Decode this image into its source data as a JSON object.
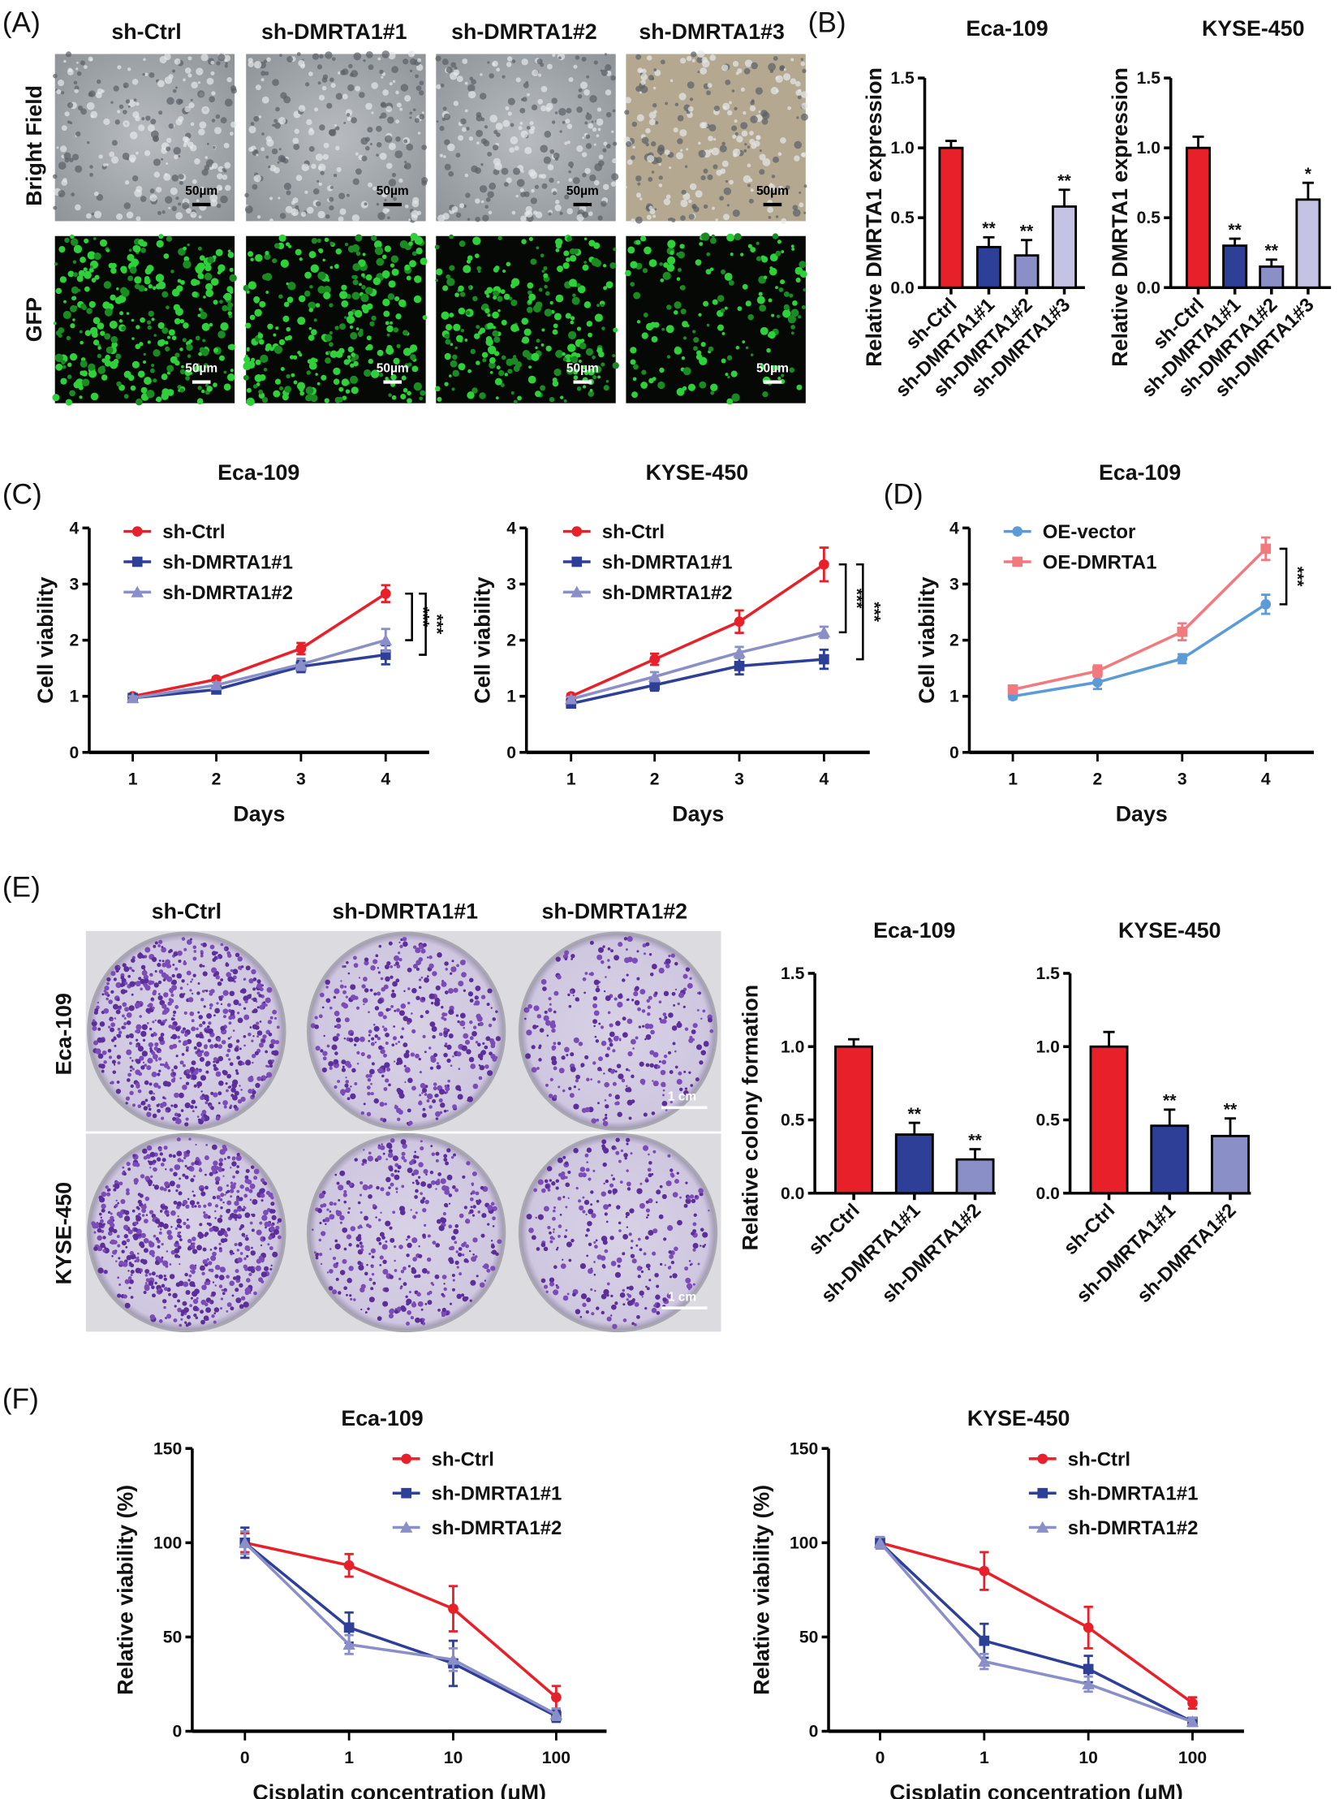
{
  "panel_labels": {
    "A": "(A)",
    "B": "(B)",
    "C": "(C)",
    "D": "(D)",
    "E": "(E)",
    "F": "(F)"
  },
  "panel_a": {
    "columns": [
      "sh-Ctrl",
      "sh-DMRTA1#1",
      "sh-DMRTA1#2",
      "sh-DMRTA1#3"
    ],
    "rows": [
      "Bright Field",
      "GFP"
    ],
    "scale_bar": "50µm"
  },
  "panel_e_images": {
    "columns": [
      "sh-Ctrl",
      "sh-DMRTA1#1",
      "sh-DMRTA1#2"
    ],
    "rows": [
      "Eca-109",
      "KYSE-450"
    ],
    "scale_bar": "1 cm"
  },
  "colors": {
    "ctrl": "#e8202a",
    "sh1": "#2e3f98",
    "sh2": "#8a8fc8",
    "sh3": "#c4c3e3",
    "oe_vector": "#5a9bd8",
    "oe_dmrta1": "#f07a7e"
  },
  "chart_data": [
    {
      "id": "B1",
      "type": "bar",
      "title": "Eca-109",
      "ylabel": "Relative DMRTA1 expression",
      "ylim": [
        0,
        1.5
      ],
      "ticks": [
        "0.0",
        "0.5",
        "1.0",
        "1.5"
      ],
      "categories": [
        "sh-Ctrl",
        "sh-DMRTA1#1",
        "sh-DMRTA1#2",
        "sh-DMRTA1#3"
      ],
      "values": [
        1.0,
        0.29,
        0.23,
        0.58
      ],
      "errors": [
        0.05,
        0.07,
        0.11,
        0.12
      ],
      "sig": [
        "",
        "**",
        "**",
        "**"
      ]
    },
    {
      "id": "B2",
      "type": "bar",
      "title": "KYSE-450",
      "ylabel": "Relative DMRTA1 expression",
      "ylim": [
        0,
        1.5
      ],
      "ticks": [
        "0.0",
        "0.5",
        "1.0",
        "1.5"
      ],
      "categories": [
        "sh-Ctrl",
        "sh-DMRTA1#1",
        "sh-DMRTA1#2",
        "sh-DMRTA1#3"
      ],
      "values": [
        1.0,
        0.3,
        0.15,
        0.63
      ],
      "errors": [
        0.08,
        0.05,
        0.05,
        0.12
      ],
      "sig": [
        "",
        "**",
        "**",
        "*"
      ]
    },
    {
      "id": "C1",
      "type": "line",
      "title": "Eca-109",
      "xlabel": "Days",
      "ylabel": "Cell viability",
      "ylim": [
        0,
        4
      ],
      "ticks": [
        "0",
        "1",
        "2",
        "3",
        "4"
      ],
      "x": [
        "1",
        "2",
        "3",
        "4"
      ],
      "series": [
        {
          "name": "sh-Ctrl",
          "values": [
            1.0,
            1.3,
            1.85,
            2.83
          ],
          "errors": [
            0.04,
            0.04,
            0.1,
            0.15
          ]
        },
        {
          "name": "sh-DMRTA1#1",
          "values": [
            0.97,
            1.12,
            1.53,
            1.74
          ],
          "errors": [
            0.04,
            0.05,
            0.1,
            0.17
          ]
        },
        {
          "name": "sh-DMRTA1#2",
          "values": [
            0.97,
            1.2,
            1.57,
            2.0
          ],
          "errors": [
            0.03,
            0.05,
            0.1,
            0.2
          ]
        }
      ],
      "significance": [
        "***",
        "***"
      ]
    },
    {
      "id": "C2",
      "type": "line",
      "title": "KYSE-450",
      "xlabel": "Days",
      "ylabel": "Cell viability",
      "ylim": [
        0,
        4
      ],
      "ticks": [
        "0",
        "1",
        "2",
        "3",
        "4"
      ],
      "x": [
        "1",
        "2",
        "3",
        "4"
      ],
      "series": [
        {
          "name": "sh-Ctrl",
          "values": [
            1.0,
            1.66,
            2.33,
            3.35
          ],
          "errors": [
            0.04,
            0.1,
            0.2,
            0.3
          ]
        },
        {
          "name": "sh-DMRTA1#1",
          "values": [
            0.87,
            1.2,
            1.54,
            1.66
          ],
          "errors": [
            0.05,
            0.1,
            0.15,
            0.17
          ]
        },
        {
          "name": "sh-DMRTA1#2",
          "values": [
            0.95,
            1.35,
            1.78,
            2.14
          ],
          "errors": [
            0.04,
            0.08,
            0.1,
            0.1
          ]
        }
      ],
      "significance": [
        "***",
        "***"
      ]
    },
    {
      "id": "D",
      "type": "line",
      "title": "Eca-109",
      "xlabel": "Days",
      "ylabel": "Cell viability",
      "ylim": [
        0,
        4
      ],
      "ticks": [
        "0",
        "1",
        "2",
        "3",
        "4"
      ],
      "x": [
        "1",
        "2",
        "3",
        "4"
      ],
      "series": [
        {
          "name": "OE-vector",
          "values": [
            1.0,
            1.25,
            1.67,
            2.64
          ],
          "errors": [
            0.05,
            0.12,
            0.08,
            0.17
          ]
        },
        {
          "name": "OE-DMRTA1",
          "values": [
            1.12,
            1.45,
            2.15,
            3.63
          ],
          "errors": [
            0.07,
            0.1,
            0.15,
            0.2
          ]
        }
      ],
      "significance": [
        "***"
      ]
    },
    {
      "id": "E1",
      "type": "bar",
      "title": "Eca-109",
      "ylabel": "Relative colony formation",
      "ylim": [
        0,
        1.5
      ],
      "ticks": [
        "0.0",
        "0.5",
        "1.0",
        "1.5"
      ],
      "categories": [
        "sh-Ctrl",
        "sh-DMRTA1#1",
        "sh-DMRTA1#2"
      ],
      "values": [
        1.0,
        0.4,
        0.23
      ],
      "errors": [
        0.05,
        0.08,
        0.07
      ],
      "sig": [
        "",
        "**",
        "**"
      ]
    },
    {
      "id": "E2",
      "type": "bar",
      "title": "KYSE-450",
      "ylabel": "",
      "ylim": [
        0,
        1.5
      ],
      "ticks": [
        "0.0",
        "0.5",
        "1.0",
        "1.5"
      ],
      "categories": [
        "sh-Ctrl",
        "sh-DMRTA1#1",
        "sh-DMRTA1#2"
      ],
      "values": [
        1.0,
        0.46,
        0.39
      ],
      "errors": [
        0.1,
        0.11,
        0.12
      ],
      "sig": [
        "",
        "**",
        "**"
      ]
    },
    {
      "id": "F1",
      "type": "line",
      "title": "Eca-109",
      "xlabel": "Cisplatin concentration (μM)",
      "ylabel": "Relative viability (%)",
      "ylim": [
        0,
        150
      ],
      "ticks": [
        "0",
        "50",
        "100",
        "150"
      ],
      "x": [
        "0",
        "1",
        "10",
        "100"
      ],
      "series": [
        {
          "name": "sh-Ctrl",
          "values": [
            100,
            88,
            65,
            18
          ],
          "errors": [
            5,
            6,
            12,
            6
          ]
        },
        {
          "name": "sh-DMRTA1#1",
          "values": [
            100,
            55,
            36,
            8
          ],
          "errors": [
            8,
            8,
            12,
            3
          ]
        },
        {
          "name": "sh-DMRTA1#2",
          "values": [
            100,
            46,
            38,
            9
          ],
          "errors": [
            6,
            5,
            6,
            3
          ]
        }
      ]
    },
    {
      "id": "F2",
      "type": "line",
      "title": "KYSE-450",
      "xlabel": "Cisplatin concentration (μM)",
      "ylabel": "Relative viability (%)",
      "ylim": [
        0,
        150
      ],
      "ticks": [
        "0",
        "50",
        "100",
        "150"
      ],
      "x": [
        "0",
        "1",
        "10",
        "100"
      ],
      "series": [
        {
          "name": "sh-Ctrl",
          "values": [
            100,
            85,
            55,
            15
          ],
          "errors": [
            3,
            10,
            11,
            3
          ]
        },
        {
          "name": "sh-DMRTA1#1",
          "values": [
            100,
            48,
            33,
            5
          ],
          "errors": [
            3,
            9,
            7,
            2
          ]
        },
        {
          "name": "sh-DMRTA1#2",
          "values": [
            100,
            37,
            25,
            5
          ],
          "errors": [
            3,
            4,
            4,
            2
          ]
        }
      ]
    }
  ]
}
